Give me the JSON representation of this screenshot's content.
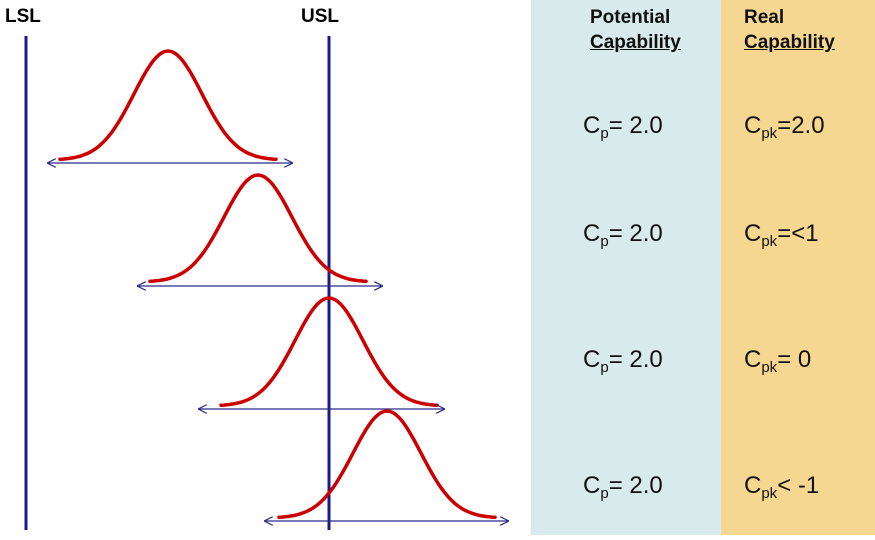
{
  "limits": {
    "lower": "LSL",
    "upper": "USL"
  },
  "columns": {
    "potential": {
      "line1": "Potential",
      "line2": "Capability"
    },
    "real": {
      "line1": "Real",
      "line2": "Capability"
    }
  },
  "rows": [
    {
      "cp_symbol": "C",
      "cp_sub": "p",
      "cp_value": "= 2.0",
      "cpk_symbol": "C",
      "cpk_sub": "pk",
      "cpk_value": "=2.0"
    },
    {
      "cp_symbol": "C",
      "cp_sub": "p",
      "cp_value": "= 2.0",
      "cpk_symbol": "C",
      "cpk_sub": "pk",
      "cpk_value": "=<1"
    },
    {
      "cp_symbol": "C",
      "cp_sub": "p",
      "cp_value": "= 2.0",
      "cpk_symbol": "C",
      "cpk_sub": "pk",
      "cpk_value": "= 0"
    },
    {
      "cp_symbol": "C",
      "cp_sub": "p",
      "cp_value": "= 2.0",
      "cpk_symbol": "C",
      "cpk_sub": "pk",
      "cpk_value": "< -1"
    }
  ],
  "colors": {
    "limit_line": "#1a1a8c",
    "curve": "#cc0000",
    "spread_arrow": "#2a2a8a",
    "potential_bg": "#d8eaec",
    "real_bg": "#f5d792"
  }
}
